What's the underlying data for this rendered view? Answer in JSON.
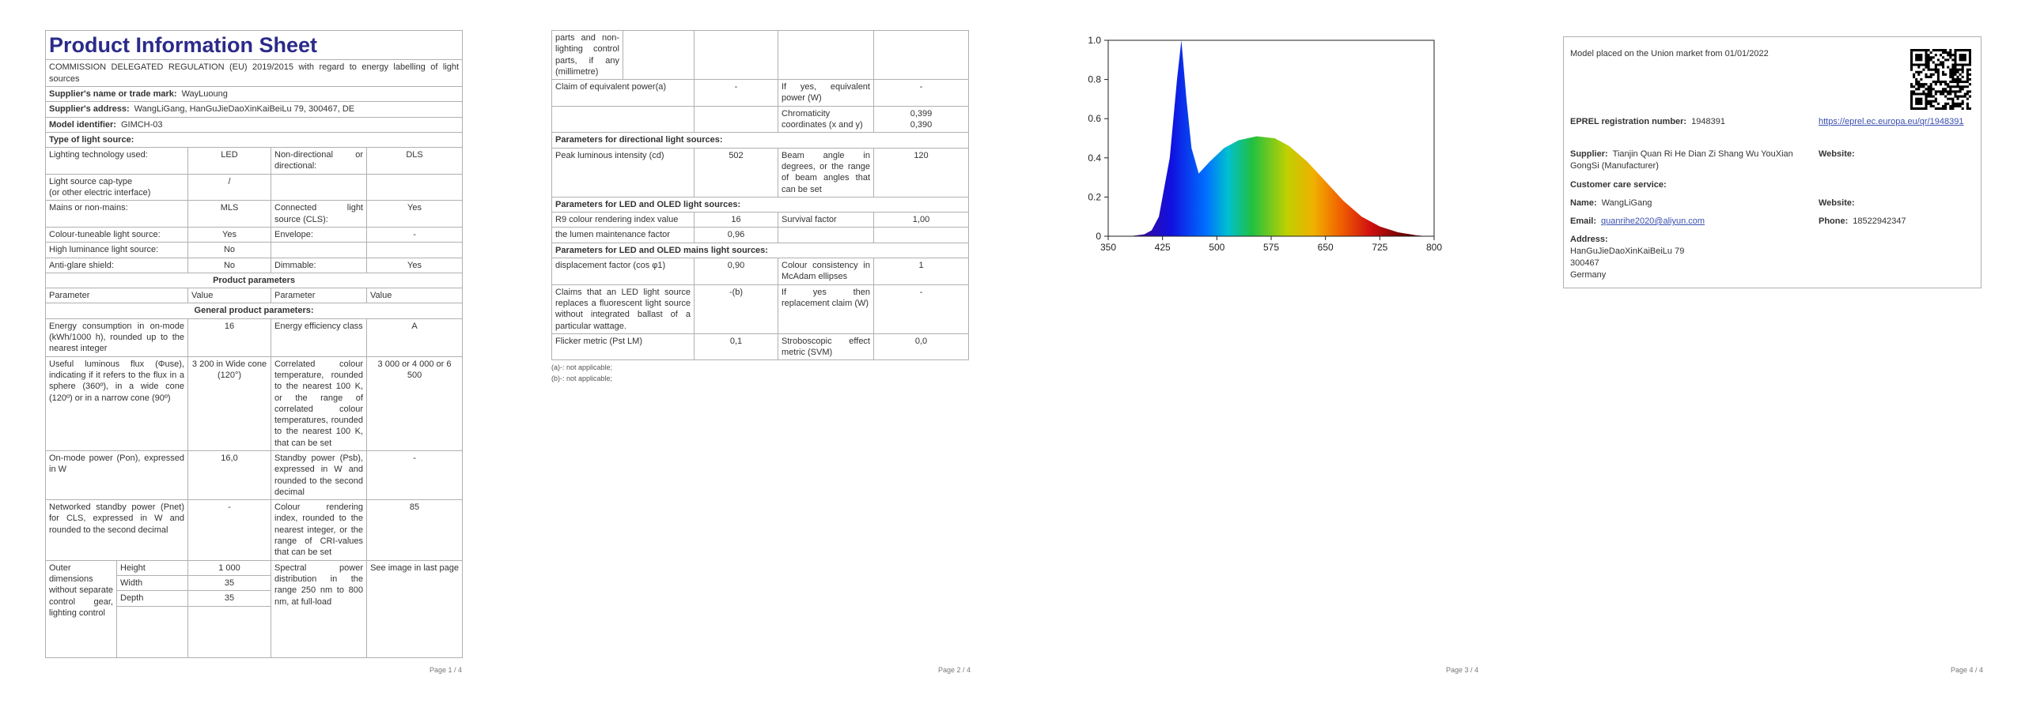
{
  "page1": {
    "title": "Product Information Sheet",
    "regulation": "COMMISSION DELEGATED REGULATION (EU) 2019/2015 with regard to energy labelling of light sources",
    "supplier_label": "Supplier's name or trade mark:",
    "supplier": "WayLuoung",
    "address_label": "Supplier's address:",
    "address": "WangLiGang, HanGuJieDaoXinKaiBeiLu 79, 300467, DE",
    "model_label": "Model identifier:",
    "model": "GIMCH-03",
    "type_heading": "Type of light source:",
    "type_rows": [
      {
        "p1": "Lighting technology used:",
        "v1": "LED",
        "p2": "Non-directional or directional:",
        "v2": "DLS"
      },
      {
        "p1": "Light source cap-type\n(or other electric interface)",
        "v1": "/"
      },
      {
        "p1": "Mains or non-mains:",
        "v1": "MLS",
        "p2": "Connected light source (CLS):",
        "v2": "Yes"
      },
      {
        "p1": "Colour-tuneable light source:",
        "v1": "Yes",
        "p2": "Envelope:",
        "v2": "-"
      },
      {
        "p1": "High luminance light source:",
        "v1": "No"
      },
      {
        "p1": "Anti-glare shield:",
        "v1": "No",
        "p2": "Dimmable:",
        "v2": "Yes"
      }
    ],
    "product_parameters": "Product parameters",
    "header": [
      "Parameter",
      "Value",
      "Parameter",
      "Value"
    ],
    "general": "General product parameters:",
    "param_rows": [
      {
        "p1": "Energy consumption in on-mode (kWh/1000 h), rounded up to the nearest integer",
        "v1": "16",
        "p2": "Energy efficiency class",
        "v2": "A"
      },
      {
        "p1": "Useful luminous flux (Φuse), indicating if it refers to the flux in a sphere (360º), in a wide cone (120º) or in a narrow cone (90º)",
        "v1": "3 200 in Wide cone (120°)",
        "p2": "Correlated colour temperature, rounded to the nearest 100 K, or the range of correlated colour temperatures, rounded to the nearest 100 K, that can be set",
        "v2": "3 000 or 4 000 or 6 500"
      },
      {
        "p1": "On-mode power (Pon), expressed in W",
        "v1": "16,0",
        "p2": "Standby power (Psb), expressed in W and rounded to the second decimal",
        "v2": "-"
      },
      {
        "p1": "Networked standby power (Pnet) for CLS, expressed in W and rounded to the second decimal",
        "v1": "-",
        "p2": "Colour rendering index, rounded to the nearest integer, or the range of CRI-values that can be set",
        "v2": "85"
      }
    ],
    "dimensions": {
      "label": "Outer dimensions without separate control gear, lighting control",
      "rows": [
        [
          "Height",
          "1 000"
        ],
        [
          "Width",
          "35"
        ],
        [
          "Depth",
          "35"
        ]
      ],
      "spd_label": "Spectral power distribution in the range 250 nm to 800 nm, at full-load",
      "spd_value": "See image in last page"
    },
    "footer": "Page 1 / 4"
  },
  "page2": {
    "continued": "parts and non-lighting control parts, if any (millimetre)",
    "rows_a": [
      {
        "p1": "Claim of equivalent power(a)",
        "v1": "-",
        "p2": "If yes, equivalent power (W)",
        "v2": "-"
      },
      {
        "p2": "Chromaticity coordinates (x and y)",
        "v2": "0,399\n0,390"
      }
    ],
    "directional_heading": "Parameters for directional light sources:",
    "rows_b": [
      {
        "p1": "Peak luminous intensity (cd)",
        "v1": "502",
        "p2": "Beam angle in degrees, or the range of beam angles that can be set",
        "v2": "120"
      }
    ],
    "led_heading": "Parameters for LED and OLED light sources:",
    "rows_c": [
      {
        "p1": "R9 colour rendering index value",
        "v1": "16",
        "p2": "Survival factor",
        "v2": "1,00"
      },
      {
        "p1": "the lumen maintenance factor",
        "v1": "0,96"
      }
    ],
    "mains_heading": "Parameters for LED and OLED mains light sources:",
    "rows_d": [
      {
        "p1": "displacement factor (cos φ1)",
        "v1": "0,90",
        "p2": "Colour consistency in McAdam ellipses",
        "v2": "1"
      },
      {
        "p1": "Claims that an LED light source replaces a fluorescent light source without integrated ballast of a particular wattage.",
        "v1": "-(b)",
        "p2": "If yes then replacement claim (W)",
        "v2": "-"
      },
      {
        "p1": "Flicker metric (Pst LM)",
        "v1": "0,1",
        "p2": "Stroboscopic effect metric (SVM)",
        "v2": "0,0"
      }
    ],
    "notes": [
      "(a)-: not applicable;",
      "(b)-: not applicable;"
    ],
    "footer": "Page 2 / 4"
  },
  "page3": {
    "spectrum": {
      "type": "area",
      "x": [
        380,
        400,
        410,
        420,
        435,
        445,
        451,
        458,
        465,
        475,
        490,
        510,
        530,
        555,
        580,
        600,
        625,
        650,
        675,
        700,
        725,
        750,
        775,
        790
      ],
      "y": [
        0,
        0.01,
        0.03,
        0.1,
        0.4,
        0.8,
        1.0,
        0.7,
        0.45,
        0.32,
        0.38,
        0.45,
        0.49,
        0.51,
        0.5,
        0.46,
        0.38,
        0.28,
        0.18,
        0.1,
        0.05,
        0.02,
        0.005,
        0
      ],
      "xlim": [
        350,
        800
      ],
      "ylim": [
        0,
        1
      ],
      "xticks": [
        350,
        425,
        500,
        575,
        650,
        725,
        800
      ],
      "yticks": [
        0,
        0.2,
        0.4,
        0.6,
        0.8,
        {
          "value": 1,
          "label": "1.0"
        }
      ]
    },
    "footer": "Page 3 / 4"
  },
  "page4": {
    "market": "Model placed on the Union market from 01/01/2022",
    "eprel_label": "EPREL registration number:",
    "eprel": "1948391",
    "link": "https://eprel.ec.europa.eu/qr/1948391",
    "supplier_label": "Supplier:",
    "supplier": "Tianjin Quan Ri He Dian Zi Shang Wu YouXian GongSi (Manufacturer)",
    "website_label": "Website:",
    "care": "Customer care service:",
    "name_label": "Name:",
    "name": "WangLiGang",
    "website2_label": "Website:",
    "email_label": "Email:",
    "email": "quanrihe2020@aliyun.com",
    "phone_label": "Phone:",
    "phone": "18522942347",
    "address_label": "Address:",
    "address": [
      "HanGuJieDaoXinKaiBeiLu 79",
      "300467",
      "Germany"
    ],
    "footer": "Page 4 / 4"
  }
}
